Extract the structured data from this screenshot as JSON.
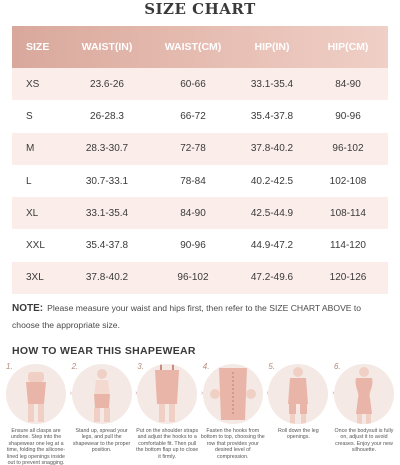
{
  "title": "SIZE CHART",
  "headers": [
    "SIZE",
    "WAIST(IN)",
    "WAIST(CM)",
    "HIP(IN)",
    "HIP(CM)"
  ],
  "rows": [
    [
      "XS",
      "23.6-26",
      "60-66",
      "33.1-35.4",
      "84-90"
    ],
    [
      "S",
      "26-28.3",
      "66-72",
      "35.4-37.8",
      "90-96"
    ],
    [
      "M",
      "28.3-30.7",
      "72-78",
      "37.8-40.2",
      "96-102"
    ],
    [
      "L",
      "30.7-33.1",
      "78-84",
      "40.2-42.5",
      "102-108"
    ],
    [
      "XL",
      "33.1-35.4",
      "84-90",
      "42.5-44.9",
      "108-114"
    ],
    [
      "XXL",
      "35.4-37.8",
      "90-96",
      "44.9-47.2",
      "114-120"
    ],
    [
      "3XL",
      "37.8-40.2",
      "96-102",
      "47.2-49.6",
      "120-126"
    ]
  ],
  "note": {
    "label": "NOTE:",
    "text": "Please measure your waist and hips first, then refer to the SIZE CHART ABOVE to choose the appropriate size."
  },
  "howto_title": "HOW TO WEAR THIS SHAPEWEAR",
  "steps": [
    {
      "num": "1.",
      "text": "Ensure all clasps are undone. Step into the shapewear one leg at a time, folding the silicone-lined leg openings inside out to prevent snagging."
    },
    {
      "num": "2.",
      "text": "Stand up, spread your legs, and pull the shapewear to the proper position."
    },
    {
      "num": "3.",
      "text": "Put on the shoulder straps and adjust the hooks to a comfortable fit. Then pull the bottom flap up to close it firmly."
    },
    {
      "num": "4.",
      "text": "Fasten the hooks from bottom to top, choosing the row that provides your desired level of compression."
    },
    {
      "num": "5.",
      "text": "Roll down the leg openings."
    },
    {
      "num": "6.",
      "text": "Once the bodysuit is fully on, adjust it to avoid creases. Enjoy your new silhouette."
    }
  ],
  "colors": {
    "header_bg": "#dca99c",
    "row_alt": "#fbeeea",
    "circle_bg": "#f4e9e5",
    "garment": "#e9b5a8"
  }
}
